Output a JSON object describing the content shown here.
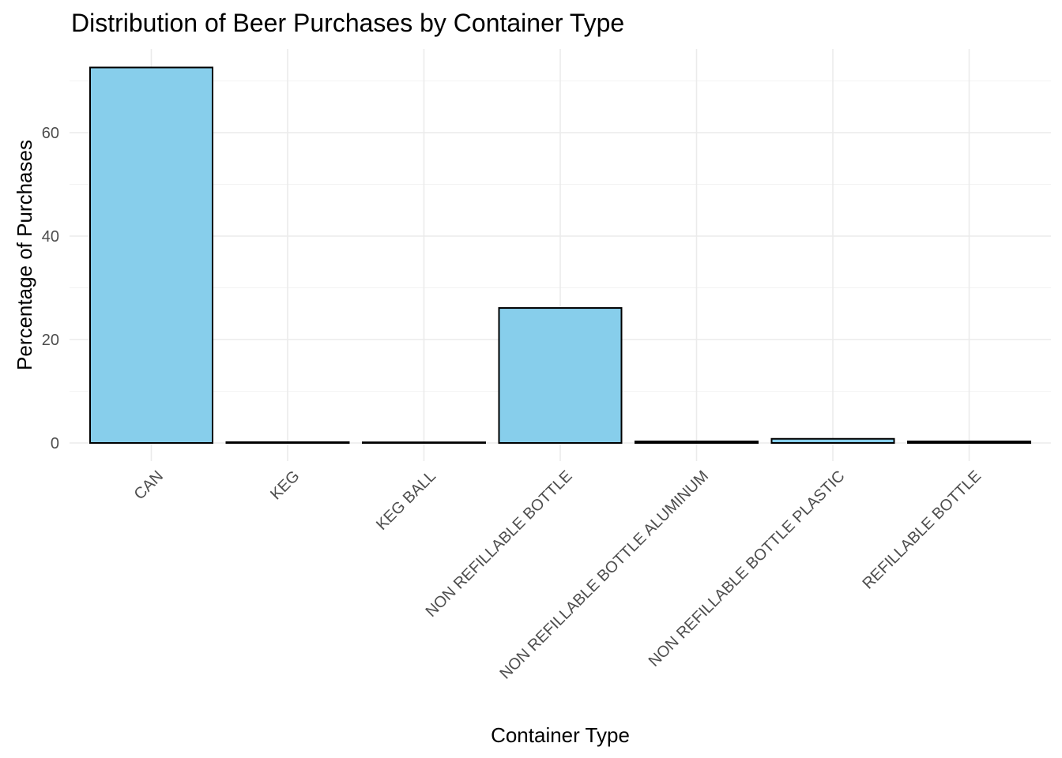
{
  "chart_data": {
    "type": "bar",
    "title": "Distribution of Beer Purchases by Container Type",
    "xlabel": "Container Type",
    "ylabel": "Percentage of Purchases",
    "categories": [
      "CAN",
      "KEG",
      "KEG BALL",
      "NON REFILLABLE BOTTLE",
      "NON REFILLABLE BOTTLE ALUMINUM",
      "NON REFILLABLE BOTTLE PLASTIC",
      "REFILLABLE BOTTLE"
    ],
    "values": [
      72.6,
      0.15,
      0.02,
      26.1,
      0.3,
      0.8,
      0.3
    ],
    "yticks": [
      0,
      20,
      40,
      60
    ],
    "ytick_labels": [
      "0",
      "20",
      "40",
      "60"
    ],
    "ylim": [
      0,
      76
    ],
    "grid": true,
    "legend": "none",
    "colors": {
      "bar_fill": "#87ceeb",
      "bar_outline": "#000000",
      "grid": "#ebebeb",
      "background": "#ffffff"
    }
  }
}
